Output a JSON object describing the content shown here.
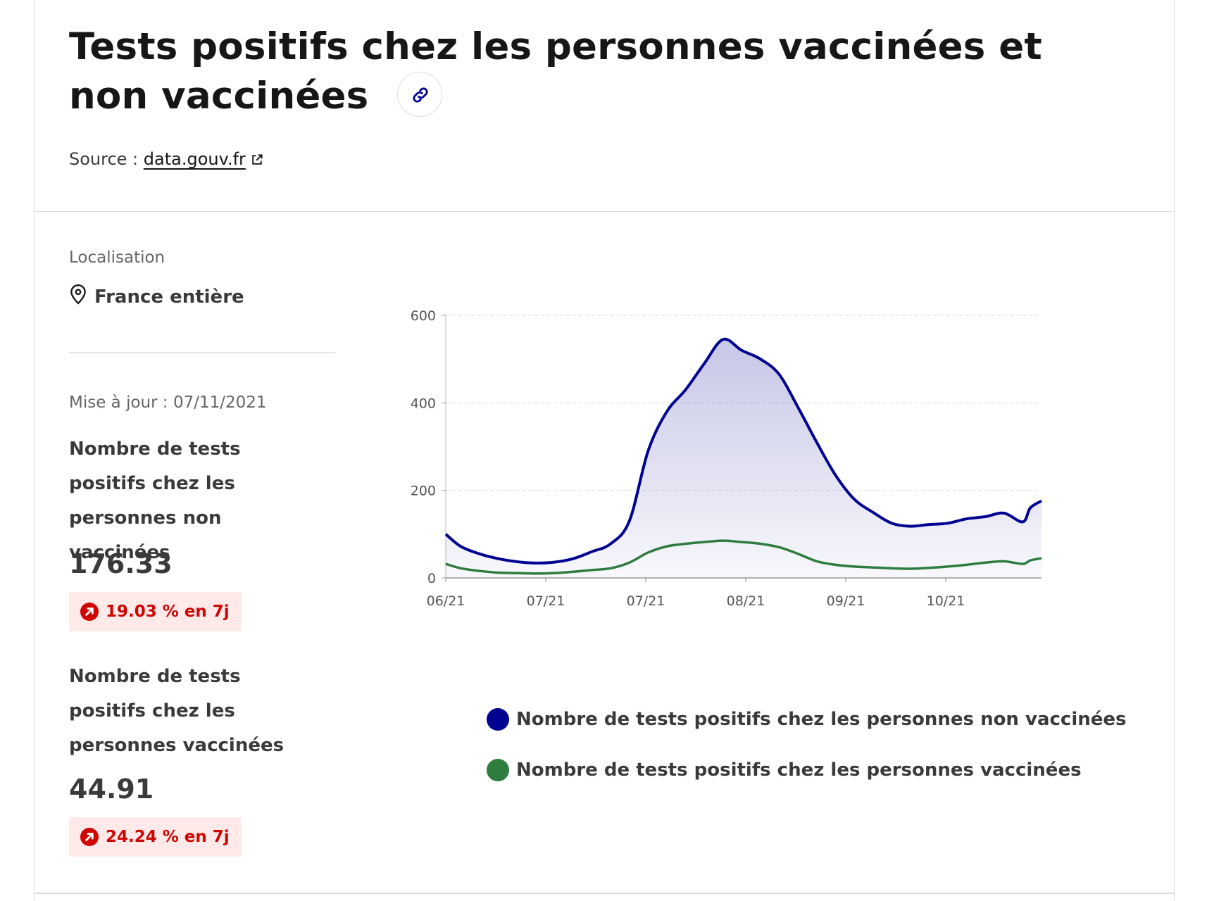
{
  "header": {
    "title": "Tests positifs chez les personnes vaccinées et non vaccinées",
    "link_icon": "link-icon",
    "source_prefix": "Source : ",
    "source_link": "data.gouv.fr",
    "external_icon": "external-link-icon"
  },
  "location": {
    "label": "Localisation",
    "value": "France entière",
    "icon": "map-pin-icon"
  },
  "updated": "Mise à jour : 07/11/2021",
  "metrics": [
    {
      "title": "Nombre de tests positifs chez les personnes non vaccinées",
      "value": "176.33",
      "change": "19.03 % en 7j",
      "change_icon": "arrow-up-right-icon"
    },
    {
      "title": "Nombre de tests positifs chez les personnes vaccinées",
      "value": "44.91",
      "change": "24.24 % en 7j",
      "change_icon": "arrow-up-right-icon"
    }
  ],
  "colors": {
    "primary": "#000091",
    "vaccinated": "#2e7d3e",
    "alert": "#ce0500",
    "alert_bg": "#ffe9e9"
  },
  "chart_data": {
    "type": "area",
    "title": "",
    "xlabel": "",
    "ylabel": "",
    "ylim": [
      0,
      600
    ],
    "yticks": [
      "0",
      "200",
      "400",
      "600"
    ],
    "xticks": [
      "06/21",
      "07/21",
      "07/21",
      "08/21",
      "09/21",
      "10/21"
    ],
    "grid": true,
    "legend_position": "bottom",
    "x_dates": [
      "2021-06-01",
      "2021-06-05",
      "2021-06-10",
      "2021-06-15",
      "2021-06-20",
      "2021-06-25",
      "2021-06-30",
      "2021-07-05",
      "2021-07-10",
      "2021-07-15",
      "2021-07-20",
      "2021-07-25",
      "2021-07-30",
      "2021-08-04",
      "2021-08-09",
      "2021-08-14",
      "2021-08-19",
      "2021-08-24",
      "2021-08-29",
      "2021-09-03",
      "2021-09-08",
      "2021-09-13",
      "2021-09-18",
      "2021-09-23",
      "2021-09-28",
      "2021-10-03",
      "2021-10-08",
      "2021-10-13",
      "2021-10-18",
      "2021-10-23",
      "2021-10-28",
      "2021-11-02",
      "2021-11-04",
      "2021-11-07"
    ],
    "series": [
      {
        "name": "Nombre de tests positifs chez les personnes non vaccinées",
        "color": "#000091",
        "filled": true,
        "values": [
          100,
          72,
          55,
          44,
          37,
          34,
          36,
          44,
          60,
          78,
          130,
          290,
          380,
          430,
          490,
          545,
          520,
          500,
          465,
          390,
          310,
          235,
          180,
          150,
          125,
          118,
          122,
          125,
          135,
          140,
          148,
          128,
          160,
          176
        ]
      },
      {
        "name": "Nombre de tests positifs chez les personnes vaccinées",
        "color": "#2e7d3e",
        "filled": false,
        "values": [
          32,
          22,
          16,
          12,
          11,
          10,
          11,
          14,
          18,
          22,
          35,
          58,
          72,
          78,
          82,
          85,
          82,
          78,
          70,
          55,
          38,
          30,
          26,
          24,
          22,
          21,
          23,
          26,
          30,
          35,
          38,
          32,
          40,
          45
        ]
      }
    ]
  }
}
